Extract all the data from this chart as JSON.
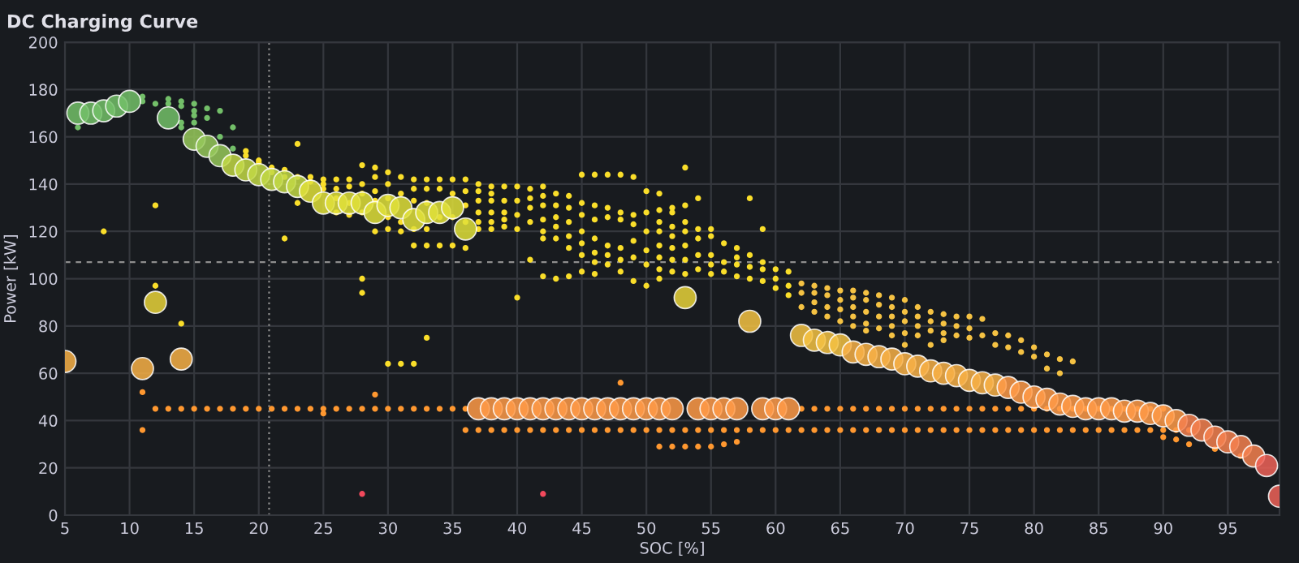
{
  "chart_data": {
    "type": "scatter",
    "title": "DC Charging Curve",
    "xlabel": "SOC [%]",
    "ylabel": "Power [kW]",
    "xlim": [
      5,
      99
    ],
    "xticks": [
      5,
      10,
      15,
      20,
      25,
      30,
      35,
      40,
      45,
      50,
      55,
      60,
      65,
      70,
      75,
      80,
      85,
      90,
      95
    ],
    "ylim": [
      0,
      200
    ],
    "yticks": [
      0,
      20,
      40,
      60,
      80,
      100,
      120,
      140,
      160,
      180,
      200
    ],
    "grid": true,
    "marker": "circle",
    "ref_lines": [
      {
        "axis": "x",
        "value": 20.8,
        "color": "#8e8e8e",
        "line_style": "dotted"
      },
      {
        "axis": "y",
        "value": 107,
        "color": "#8e8e8e",
        "line_style": "dashed"
      }
    ],
    "series": [
      {
        "type": "scatter",
        "color": "#73bf69",
        "x": [
          6,
          11,
          11,
          12,
          13,
          13,
          14,
          14,
          14,
          14,
          15,
          15,
          15,
          15,
          16,
          16,
          17,
          17,
          18,
          18
        ],
        "values": [
          164,
          177,
          175,
          174,
          176,
          174,
          175,
          173,
          166,
          164,
          174,
          171,
          169,
          166,
          172,
          168,
          171,
          160,
          164,
          155
        ]
      },
      {
        "type": "scatter",
        "color": "#fade2a",
        "x": [
          8,
          12,
          12,
          14,
          19,
          19,
          20,
          20,
          21,
          21,
          22,
          22,
          22,
          23,
          23,
          23,
          24,
          24,
          25,
          25,
          25,
          26,
          26,
          26,
          26,
          27,
          27,
          27,
          27,
          28,
          28,
          28,
          28,
          28,
          28,
          29,
          29,
          29,
          29,
          29,
          30,
          30,
          30,
          30,
          30,
          30,
          31,
          31,
          31,
          31,
          31,
          32,
          32,
          32,
          32,
          32,
          32,
          33,
          33,
          33,
          33,
          33,
          33,
          34,
          34,
          34,
          34,
          35,
          35,
          35,
          35,
          36,
          36,
          36,
          36,
          36,
          37,
          37,
          37,
          37,
          37,
          37,
          38,
          38,
          38,
          38,
          38,
          38,
          39,
          39,
          39,
          39,
          39,
          40,
          40,
          40,
          40,
          40,
          41,
          41,
          41,
          41,
          41,
          42,
          42,
          42,
          42,
          42,
          42,
          42,
          43,
          43,
          43,
          43,
          43,
          43,
          44,
          44,
          44,
          44,
          44,
          44,
          45,
          45,
          45,
          45,
          45,
          45,
          45,
          46,
          46,
          46,
          46,
          46,
          46,
          46,
          47,
          47,
          47,
          47,
          47,
          47,
          48,
          48,
          48,
          48,
          48,
          48,
          49,
          49,
          49,
          49,
          49,
          49,
          50,
          50,
          50,
          50,
          50,
          50,
          51,
          51,
          51,
          51,
          51,
          51,
          51,
          51,
          52,
          52,
          52,
          52,
          52,
          52,
          52,
          53,
          53,
          53,
          53,
          53,
          53,
          53,
          54,
          54,
          54,
          54,
          54,
          55,
          55,
          55,
          55,
          55,
          56,
          56,
          56,
          57,
          57,
          57,
          57,
          58,
          58,
          58,
          58,
          59,
          59,
          59,
          59,
          60,
          60,
          60,
          61,
          61,
          61
        ],
        "values": [
          120,
          131,
          97,
          81,
          154,
          152,
          150,
          149,
          147,
          145,
          146,
          143,
          117,
          157,
          143,
          132,
          143,
          141,
          142,
          140,
          138,
          142,
          138,
          134,
          128,
          142,
          139,
          132,
          127,
          148,
          140,
          136,
          128,
          100,
          94,
          147,
          143,
          137,
          133,
          120,
          145,
          140,
          134,
          126,
          121,
          64,
          143,
          136,
          124,
          120,
          64,
          142,
          138,
          133,
          121,
          114,
          64,
          142,
          138,
          132,
          121,
          114,
          75,
          142,
          138,
          126,
          114,
          142,
          136,
          126,
          114,
          142,
          137,
          131,
          124,
          113,
          140,
          137,
          133,
          128,
          124,
          121,
          139,
          136,
          133,
          128,
          124,
          121,
          139,
          133,
          128,
          125,
          122,
          139,
          133,
          127,
          121,
          92,
          138,
          134,
          130,
          124,
          108,
          139,
          135,
          131,
          125,
          120,
          117,
          101,
          136,
          131,
          126,
          122,
          117,
          100,
          135,
          130,
          124,
          118,
          113,
          101,
          144,
          132,
          127,
          120,
          115,
          110,
          103,
          144,
          131,
          125,
          117,
          111,
          107,
          102,
          144,
          130,
          126,
          114,
          110,
          106,
          144,
          128,
          125,
          113,
          108,
          103,
          143,
          127,
          123,
          116,
          109,
          99,
          137,
          128,
          120,
          112,
          106,
          97,
          136,
          129,
          124,
          120,
          114,
          109,
          104,
          100,
          130,
          128,
          122,
          118,
          113,
          108,
          103,
          147,
          131,
          124,
          120,
          114,
          108,
          102,
          134,
          121,
          117,
          110,
          104,
          121,
          118,
          110,
          106,
          102,
          115,
          107,
          103,
          113,
          109,
          106,
          101,
          134,
          110,
          105,
          100,
          121,
          107,
          104,
          99,
          104,
          100,
          96,
          103,
          97,
          93
        ]
      },
      {
        "type": "scatter",
        "color": "#f5c243",
        "x": [
          62,
          62,
          62,
          63,
          63,
          63,
          63,
          64,
          64,
          64,
          64,
          65,
          65,
          65,
          65,
          66,
          66,
          66,
          66,
          66,
          67,
          67,
          67,
          67,
          67,
          68,
          68,
          68,
          68,
          69,
          69,
          69,
          69,
          69,
          70,
          70,
          70,
          70,
          70,
          71,
          71,
          71,
          71,
          72,
          72,
          72,
          72,
          73,
          73,
          73,
          73,
          74,
          74,
          74,
          75,
          75,
          75,
          76,
          76,
          77,
          77,
          78,
          78,
          79,
          79,
          80,
          80,
          81,
          81,
          82,
          82,
          83
        ],
        "values": [
          98,
          94,
          88,
          97,
          94,
          90,
          86,
          96,
          93,
          88,
          84,
          95,
          91,
          87,
          82,
          95,
          92,
          88,
          84,
          80,
          94,
          91,
          86,
          81,
          78,
          93,
          89,
          84,
          79,
          92,
          88,
          84,
          80,
          76,
          91,
          86,
          82,
          77,
          72,
          88,
          84,
          80,
          76,
          86,
          82,
          78,
          72,
          85,
          81,
          77,
          74,
          84,
          80,
          76,
          84,
          79,
          75,
          83,
          76,
          77,
          72,
          76,
          71,
          74,
          69,
          71,
          67,
          68,
          62,
          66,
          60,
          65
        ]
      },
      {
        "type": "scatter",
        "color": "#ff9830",
        "x": [
          12,
          13,
          14,
          15,
          16,
          17,
          18,
          19,
          20,
          21,
          22,
          23,
          24,
          25,
          26,
          27,
          28,
          29,
          30,
          31,
          32,
          33,
          34,
          35,
          36,
          62,
          63,
          64,
          65,
          66,
          67,
          68,
          69,
          70,
          71,
          72,
          73,
          74,
          75,
          76,
          77,
          78,
          79,
          80,
          81,
          82,
          83,
          84,
          85,
          86,
          87,
          88,
          89,
          90,
          36,
          37,
          38,
          39,
          40,
          41,
          42,
          43,
          44,
          45,
          46,
          47,
          48,
          49,
          50,
          51,
          52,
          53,
          54,
          55,
          56,
          57,
          58,
          59,
          60,
          61,
          62,
          63,
          64,
          65,
          66,
          67,
          68,
          69,
          70,
          71,
          72,
          73,
          74,
          75,
          76,
          77,
          78,
          79,
          80,
          81,
          82,
          83,
          84,
          85,
          86,
          87,
          88,
          89,
          90,
          91,
          92,
          11,
          11,
          25,
          29,
          48,
          51,
          52,
          53,
          54,
          55,
          56,
          57,
          90,
          91,
          92,
          94,
          96
        ],
        "values": [
          45,
          45,
          45,
          45,
          45,
          45,
          45,
          45,
          45,
          45,
          45,
          45,
          45,
          45,
          45,
          45,
          45,
          45,
          45,
          45,
          45,
          45,
          45,
          45,
          45,
          45,
          45,
          45,
          45,
          45,
          45,
          45,
          45,
          45,
          45,
          45,
          45,
          45,
          45,
          45,
          45,
          45,
          45,
          45,
          45,
          45,
          45,
          45,
          45,
          45,
          45,
          45,
          45,
          45,
          36,
          36,
          36,
          36,
          36,
          36,
          36,
          36,
          36,
          36,
          36,
          36,
          36,
          36,
          36,
          36,
          36,
          36,
          36,
          36,
          36,
          36,
          36,
          36,
          36,
          36,
          36,
          36,
          36,
          36,
          36,
          36,
          36,
          36,
          36,
          36,
          36,
          36,
          36,
          36,
          36,
          36,
          36,
          36,
          36,
          36,
          36,
          36,
          36,
          36,
          36,
          36,
          36,
          36,
          36,
          36,
          36,
          52,
          36,
          43,
          51,
          56,
          29,
          29,
          29,
          29,
          29,
          30,
          31,
          33,
          32,
          30,
          28,
          25
        ]
      },
      {
        "type": "scatter",
        "color": "#f2495c",
        "x": [
          28,
          42
        ],
        "values": [
          9,
          9
        ]
      },
      {
        "type": "bubble",
        "x": [
          6,
          7,
          8,
          9,
          10,
          13,
          15,
          16,
          17,
          18,
          19,
          20,
          21,
          22,
          23,
          24,
          25,
          26,
          27,
          28,
          29,
          30,
          31,
          32,
          33,
          34,
          35,
          36,
          53,
          58,
          62,
          63,
          64,
          65,
          66,
          67,
          68,
          69,
          70,
          71,
          72,
          73,
          74,
          75,
          76,
          77,
          78,
          79,
          80,
          81,
          82,
          83,
          84,
          85,
          86,
          87,
          88,
          89,
          90,
          91,
          92,
          93,
          94,
          95,
          96,
          97,
          98,
          99,
          37,
          38,
          39,
          40,
          41,
          42,
          43,
          44,
          45,
          46,
          47,
          48,
          49,
          50,
          51,
          52,
          54,
          55,
          56,
          57,
          59,
          60,
          61,
          5,
          11,
          12,
          14
        ],
        "values": [
          170,
          170,
          171,
          173,
          175,
          168,
          159,
          156,
          152,
          148,
          146,
          144,
          142,
          141,
          139,
          137,
          132,
          132,
          132,
          132,
          128,
          131,
          130,
          125,
          128,
          128,
          130,
          121,
          92,
          82,
          76,
          74,
          73,
          72,
          69,
          68,
          67,
          66,
          64,
          63,
          61,
          60,
          59,
          57,
          56,
          55,
          54,
          52,
          50,
          49,
          47,
          46,
          45,
          45,
          45,
          44,
          44,
          43,
          42,
          40,
          38,
          36,
          33,
          31,
          29,
          25,
          21,
          8,
          45,
          45,
          45,
          45,
          45,
          45,
          45,
          45,
          45,
          45,
          45,
          45,
          45,
          45,
          45,
          45,
          45,
          45,
          45,
          45,
          45,
          45,
          45,
          65,
          62,
          90,
          66
        ],
        "sizes": [
          1,
          1,
          1,
          1,
          1,
          1,
          1,
          1,
          1,
          1,
          1,
          1,
          1,
          1,
          1,
          1,
          1,
          1,
          1,
          1,
          1,
          1,
          1,
          1,
          1,
          1,
          1,
          1,
          1,
          1,
          1,
          1,
          1,
          1,
          1,
          1,
          1,
          1,
          1,
          1,
          1,
          1,
          1,
          1,
          1,
          1,
          1,
          1,
          1,
          1,
          1,
          1,
          1,
          1,
          1,
          1,
          1,
          1,
          1,
          1,
          1,
          1,
          1,
          1,
          1,
          1,
          1,
          1,
          1,
          1,
          1,
          1,
          1,
          1,
          1,
          1,
          1,
          1,
          1,
          1,
          1,
          1,
          1,
          1,
          1,
          1,
          1,
          1,
          1,
          1,
          1,
          1,
          1,
          1,
          1
        ],
        "colors": [
          "#73bf69",
          "#73bf69",
          "#73bf69",
          "#73bf69",
          "#73bf69",
          "#73bf69",
          "#96c85a",
          "#96c85a",
          "#96c85a",
          "#c2d845",
          "#c2d845",
          "#c2d845",
          "#c2d845",
          "#c2d845",
          "#c2d845",
          "#e0e03a",
          "#e0e03a",
          "#e0e03a",
          "#e0e03a",
          "#e0e03a",
          "#e0e03a",
          "#e0e03a",
          "#e0e03a",
          "#e0e03a",
          "#e0e03a",
          "#e0e03a",
          "#e0e03a",
          "#e0e03a",
          "#e8d23a",
          "#f5c243",
          "#f5c243",
          "#f5c243",
          "#f5c243",
          "#f5c243",
          "#f8b047",
          "#f8b047",
          "#f8b047",
          "#f8b047",
          "#f8b047",
          "#f8b047",
          "#f8b047",
          "#f8b047",
          "#f8b047",
          "#f8b047",
          "#f8b047",
          "#f8b047",
          "#ff9a48",
          "#ff9a48",
          "#ff9a48",
          "#ff9a48",
          "#ff9a48",
          "#ff9a48",
          "#ff9a48",
          "#ff9a48",
          "#ff9a48",
          "#ff9a48",
          "#ff9a48",
          "#ff9a48",
          "#ff9a48",
          "#ff9a48",
          "#f5804f",
          "#f5804f",
          "#f5804f",
          "#f5804f",
          "#f5804f",
          "#f5804f",
          "#ee6158",
          "#ee6158",
          "#ff9a48",
          "#ff9a48",
          "#ff9a48",
          "#ff9a48",
          "#ff9a48",
          "#ff9a48",
          "#ff9a48",
          "#ff9a48",
          "#ff9a48",
          "#ff9a48",
          "#ff9a48",
          "#ff9a48",
          "#ff9a48",
          "#ff9a48",
          "#ff9a48",
          "#ff9a48",
          "#ff9a48",
          "#ff9a48",
          "#ff9a48",
          "#ff9a48",
          "#ff9a48",
          "#ff9a48",
          "#ff9a48",
          "#f8b047",
          "#f8b047",
          "#e8d23a",
          "#f8b047"
        ]
      }
    ]
  }
}
